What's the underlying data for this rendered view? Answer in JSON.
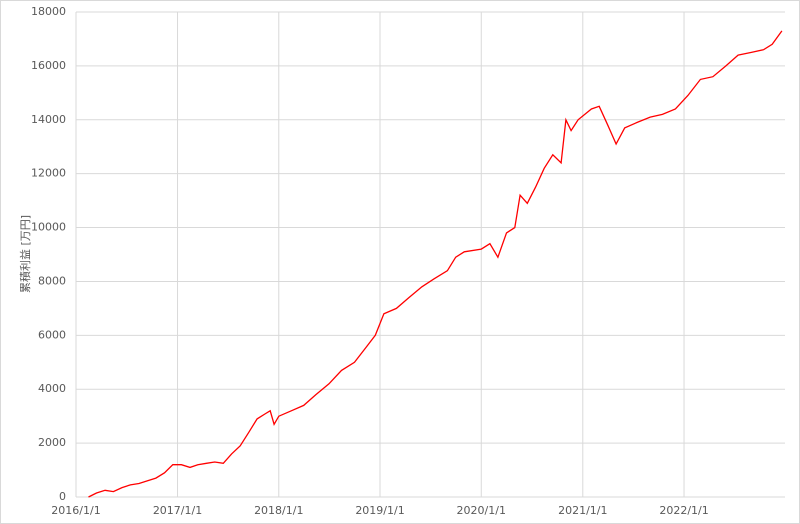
{
  "chart_data": {
    "type": "line",
    "y_label": "累積利益 [万円]",
    "x": [
      "2016/2/15",
      "2016/3/15",
      "2016/4/15",
      "2016/5/15",
      "2016/6/15",
      "2016/7/15",
      "2016/8/15",
      "2016/9/15",
      "2016/10/15",
      "2016/11/15",
      "2016/12/15",
      "2017/1/15",
      "2017/2/15",
      "2017/3/15",
      "2017/4/15",
      "2017/5/15",
      "2017/6/15",
      "2017/7/15",
      "2017/8/15",
      "2017/9/15",
      "2017/10/15",
      "2017/11/15",
      "2017/12/1",
      "2017/12/15",
      "2018/1/1",
      "2018/2/15",
      "2018/4/1",
      "2018/5/15",
      "2018/7/1",
      "2018/8/15",
      "2018/10/1",
      "2018/11/15",
      "2018/12/15",
      "2019/1/15",
      "2019/3/1",
      "2019/4/15",
      "2019/6/1",
      "2019/7/15",
      "2019/9/1",
      "2019/10/1",
      "2019/11/1",
      "2020/1/1",
      "2020/2/1",
      "2020/3/1",
      "2020/4/1",
      "2020/5/1",
      "2020/5/20",
      "2020/6/15",
      "2020/7/15",
      "2020/8/15",
      "2020/9/15",
      "2020/10/15",
      "2020/11/1",
      "2020/11/20",
      "2020/12/15",
      "2021/2/1",
      "2021/3/1",
      "2021/4/1",
      "2021/5/1",
      "2021/6/1",
      "2021/7/15",
      "2021/9/1",
      "2021/10/15",
      "2021/12/1",
      "2022/1/15",
      "2022/3/1",
      "2022/4/15",
      "2022/6/1",
      "2022/7/15",
      "2022/9/1",
      "2022/10/15",
      "2022/11/15",
      "2022/12/20"
    ],
    "series": [
      {
        "color": "#ff0000",
        "values": [
          0,
          150,
          250,
          200,
          350,
          450,
          500,
          600,
          700,
          900,
          1200,
          1200,
          1100,
          1200,
          1250,
          1300,
          1250,
          1600,
          1900,
          2400,
          2900,
          3100,
          3200,
          2700,
          3000,
          3200,
          3400,
          3800,
          4200,
          4700,
          5000,
          5600,
          6000,
          6800,
          7000,
          7400,
          7800,
          8100,
          8400,
          8900,
          9100,
          9200,
          9400,
          8900,
          9800,
          10000,
          11200,
          10900,
          11500,
          12200,
          12700,
          12400,
          14000,
          13600,
          14000,
          14400,
          14500,
          13800,
          13100,
          13700,
          13900,
          14100,
          14200,
          14400,
          14900,
          15500,
          15600,
          16000,
          16400,
          16500,
          16600,
          16800,
          17300
        ]
      }
    ],
    "xlim": [
      "2016/1/1",
      "2022/12/31"
    ],
    "xticks": [
      "2016/1/1",
      "2017/1/1",
      "2018/1/1",
      "2019/1/1",
      "2020/1/1",
      "2021/1/1",
      "2022/1/1"
    ],
    "ylim": [
      0,
      18000
    ],
    "yticks": [
      0,
      2000,
      4000,
      6000,
      8000,
      10000,
      12000,
      14000,
      16000,
      18000
    ],
    "grid": true
  }
}
